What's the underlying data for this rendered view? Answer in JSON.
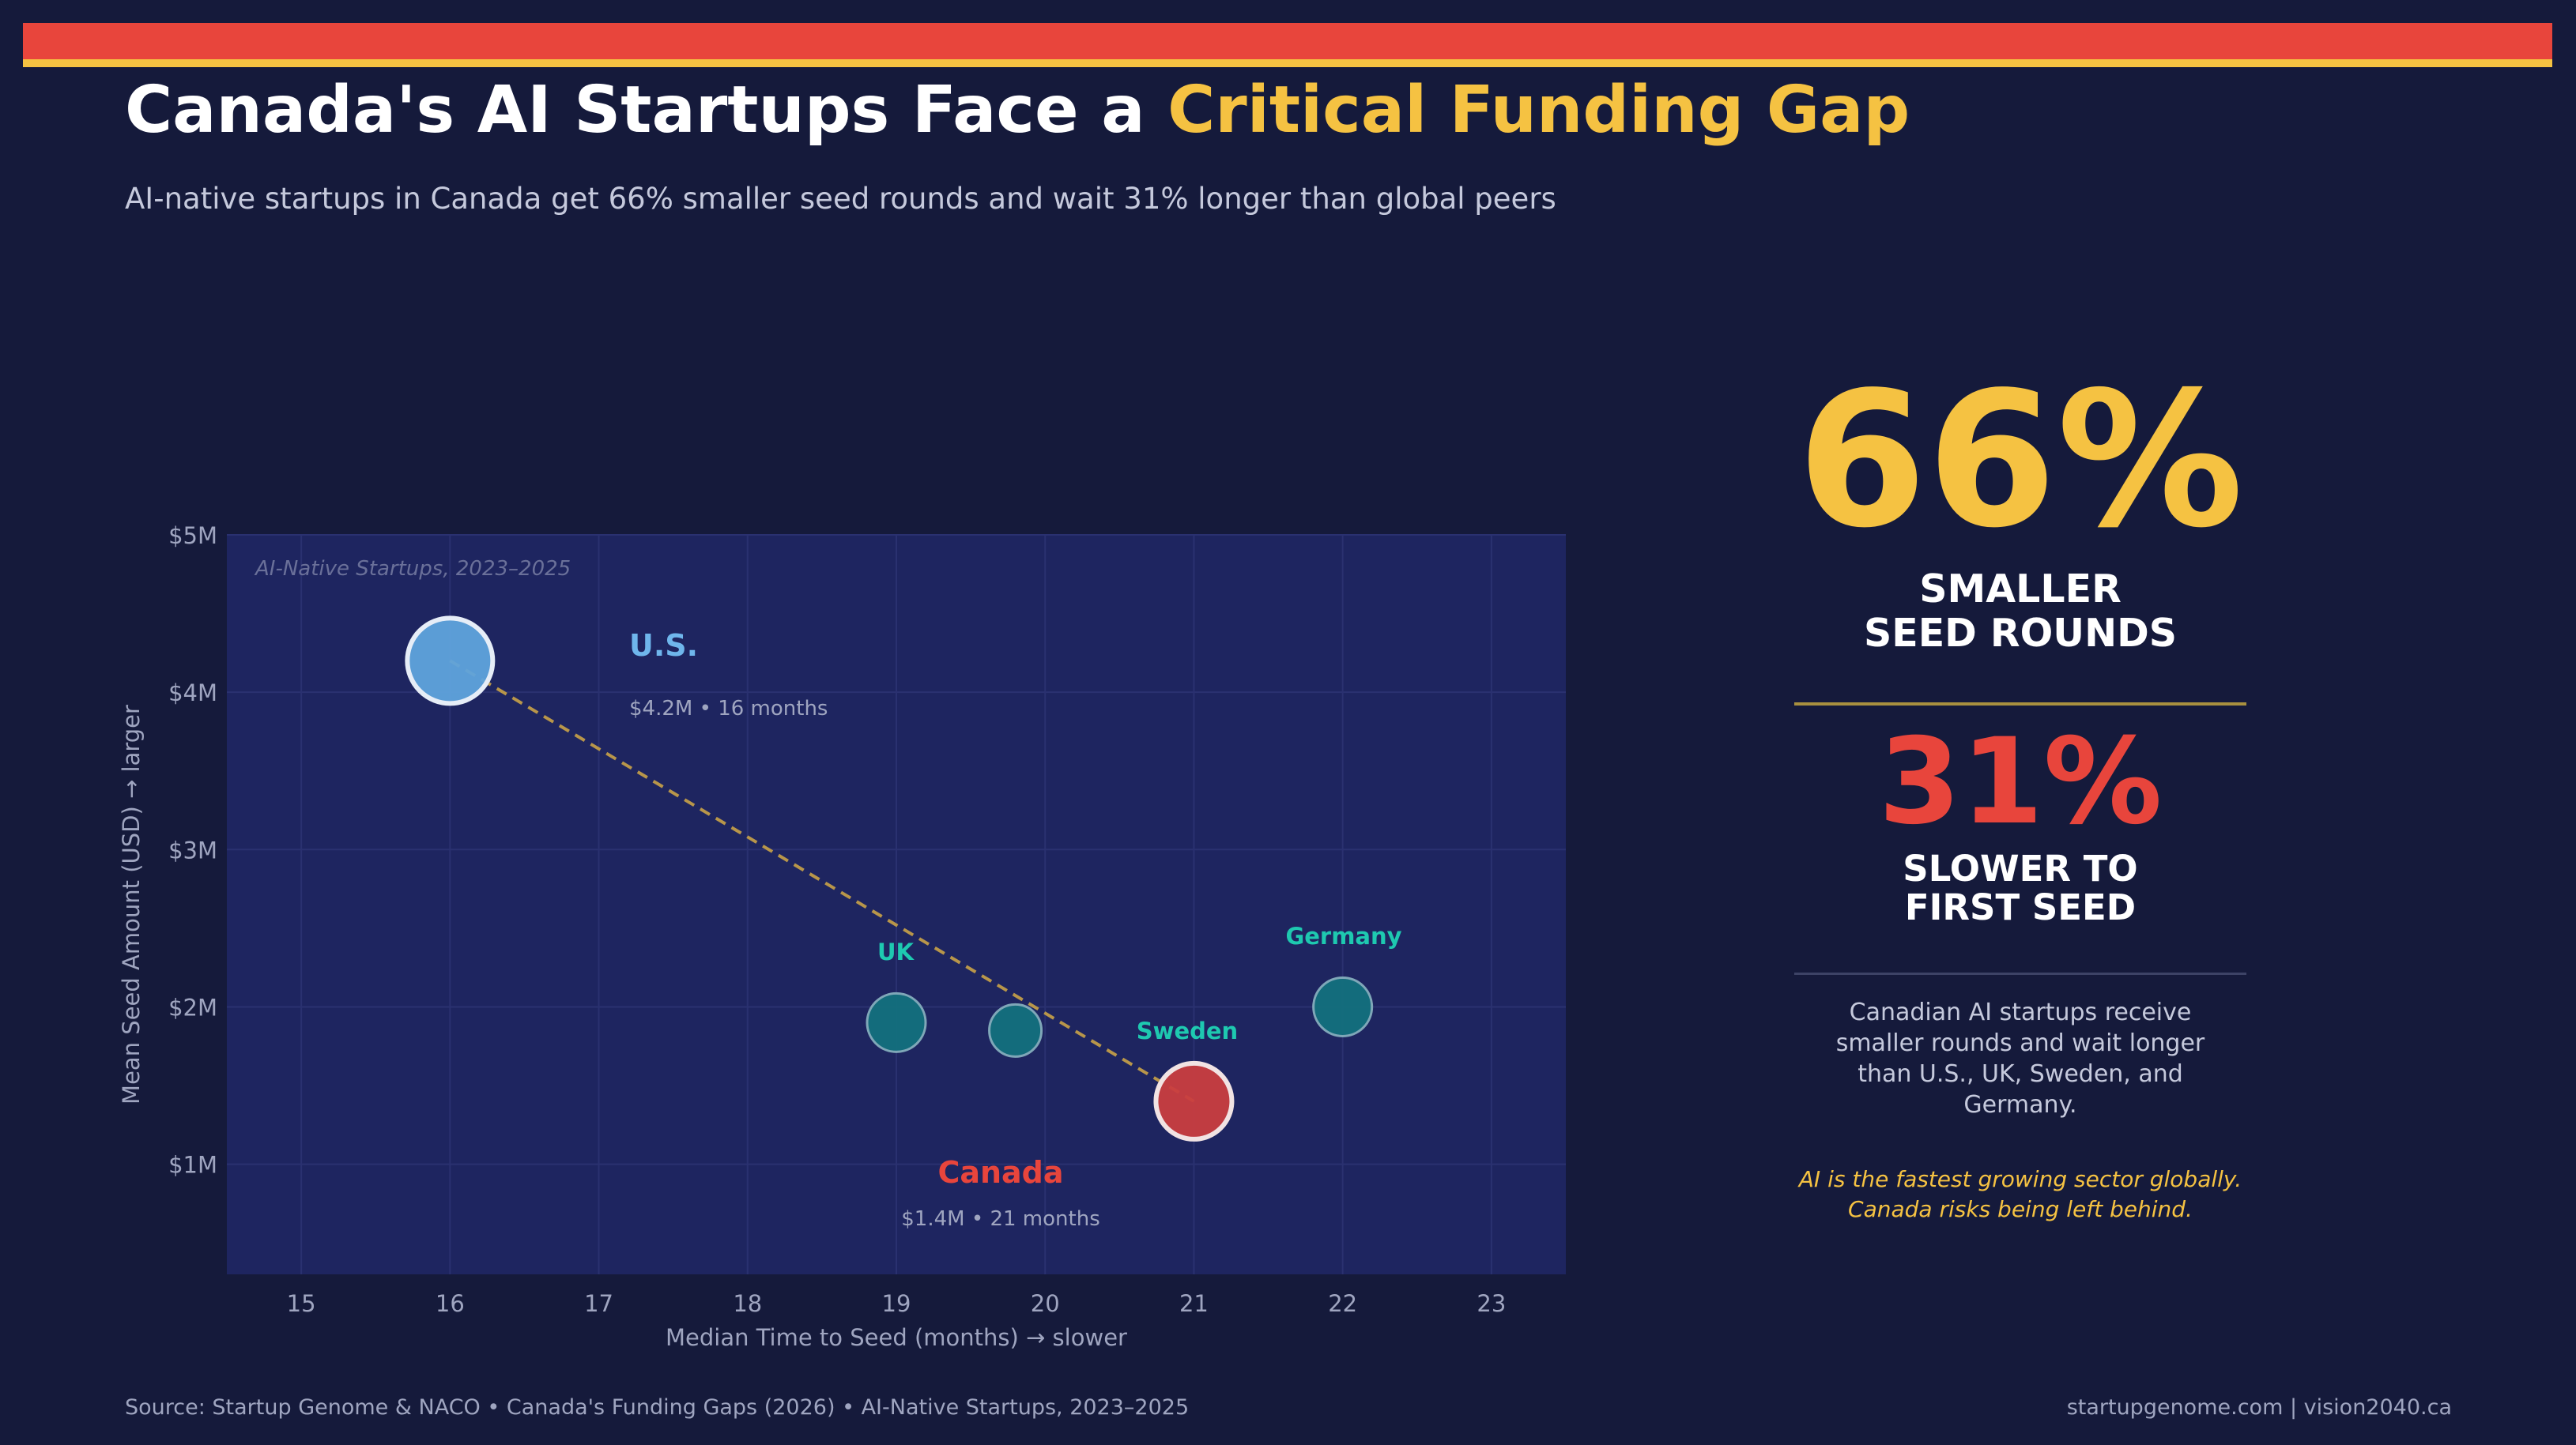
{
  "header": {
    "title_main": "Canada's AI Startups Face a ",
    "title_highlight": "Critical Funding Gap",
    "subtitle": "AI-native startups in Canada get 66% smaller seed rounds and wait 31% longer than global peers"
  },
  "colors": {
    "background": "#151a3b",
    "plot_background": "#1e2560",
    "accent_red": "#e8453c",
    "accent_yellow": "#f5c242",
    "us_blue": "#5fa3dc",
    "peer_teal": "#13707d",
    "label_teal": "#1ec9b0",
    "canada_red": "#c93d3f",
    "trend_line": "#b8964a"
  },
  "chart_data": {
    "type": "scatter",
    "inset_label": "AI-Native Startups, 2023–2025",
    "xlabel": "Median Time to Seed (months)  →  slower",
    "ylabel": "Mean Seed Amount (USD)  →  larger",
    "xlim": [
      14.5,
      23.5
    ],
    "ylim": [
      0.3,
      5.0
    ],
    "x_ticks": [
      "15",
      "16",
      "17",
      "18",
      "19",
      "20",
      "21",
      "22",
      "23"
    ],
    "y_ticks": [
      {
        "value": 1,
        "label": "$1M"
      },
      {
        "value": 2,
        "label": "$2M"
      },
      {
        "value": 3,
        "label": "$3M"
      },
      {
        "value": 4,
        "label": "$4M"
      },
      {
        "value": 5,
        "label": "$5M"
      }
    ],
    "grid": true,
    "points": [
      {
        "name": "U.S.",
        "x": 16,
        "y": 4.2,
        "detail": "$4.2M  •  16 months",
        "color": "#5fa3dc"
      },
      {
        "name": "UK",
        "x": 19,
        "y": 1.9,
        "color": "#13707d"
      },
      {
        "name": "",
        "x": 19.8,
        "y": 1.85,
        "color": "#13707d"
      },
      {
        "name": "Germany",
        "x": 22,
        "y": 2.0,
        "color": "#13707d"
      },
      {
        "name": "Canada",
        "x": 21,
        "y": 1.4,
        "detail": "$1.4M  •  21 months",
        "color": "#c93d3f"
      }
    ],
    "annotations": [
      {
        "text": "Sweden"
      }
    ],
    "trend_line": {
      "from": [
        16,
        4.2
      ],
      "to": [
        21,
        1.4
      ],
      "style": "dashed"
    }
  },
  "stats": {
    "stat1_value": "66%",
    "stat1_caption_line1": "SMALLER",
    "stat1_caption_line2": "SEED ROUNDS",
    "stat2_value": "31%",
    "stat2_caption_line1": "SLOWER TO",
    "stat2_caption_line2": "FIRST SEED",
    "description": "Canadian AI startups receive smaller rounds and wait longer than U.S., UK, Sweden, and Germany.",
    "quote_line1": "AI is the fastest growing sector globally.",
    "quote_line2": "Canada risks being left behind."
  },
  "footer": {
    "source": "Source: Startup Genome & NACO  •  Canada's Funding Gaps (2026)  •  AI-Native Startups, 2023–2025",
    "site": "startupgenome.com  |  vision2040.ca"
  }
}
